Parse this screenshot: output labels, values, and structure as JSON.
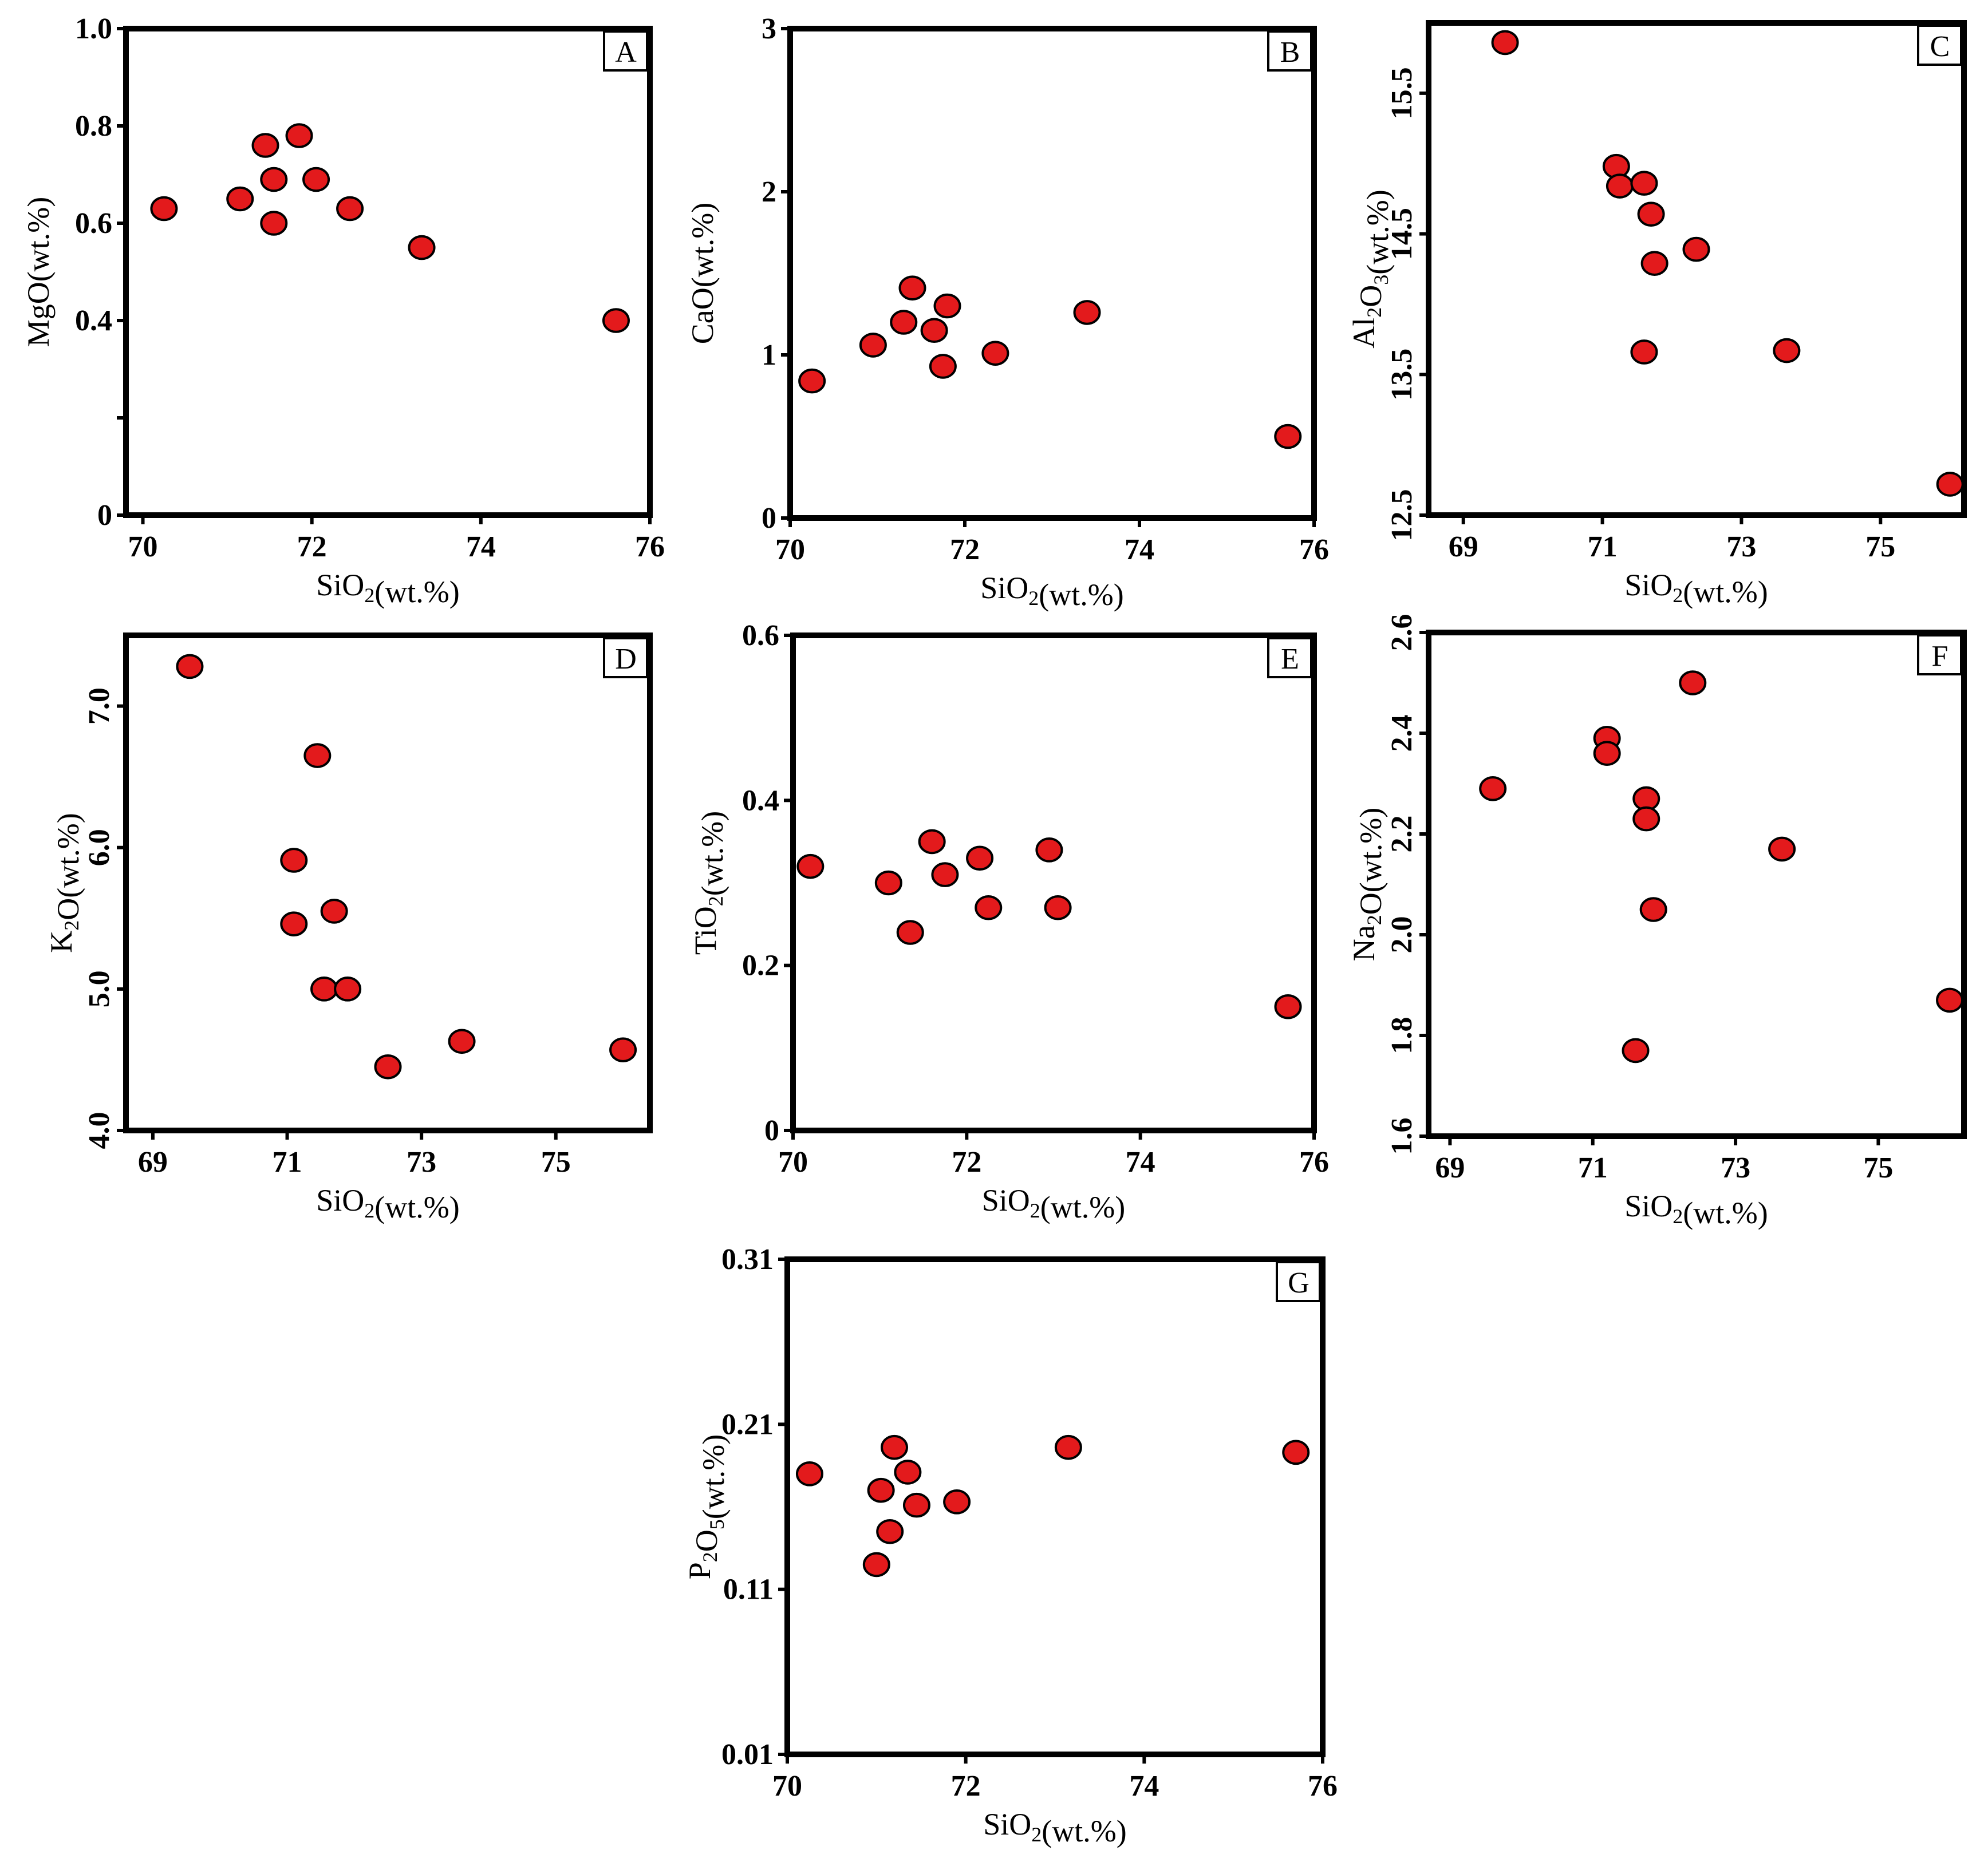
{
  "chart_data": [
    {
      "type": "scatter",
      "panel_label": "A",
      "xlabel": {
        "parts": [
          {
            "t": "SiO"
          },
          {
            "t": "2",
            "sub": true
          },
          {
            "t": "(wt.%)"
          }
        ]
      },
      "ylabel": {
        "parts": [
          {
            "t": "MgO(wt.%)"
          }
        ]
      },
      "xlim": [
        69.8,
        76
      ],
      "ylim": [
        0,
        1.0
      ],
      "xticks": [
        {
          "v": 70,
          "label": "70"
        },
        {
          "v": 72,
          "label": "72"
        },
        {
          "v": 74,
          "label": "74"
        },
        {
          "v": 76,
          "label": "76"
        }
      ],
      "yticks": [
        {
          "v": 0,
          "label": "0"
        },
        {
          "v": 0.2,
          "label": ""
        },
        {
          "v": 0.4,
          "label": "0.4"
        },
        {
          "v": 0.6,
          "label": "0.6"
        },
        {
          "v": 0.8,
          "label": "0.8"
        },
        {
          "v": 1.0,
          "label": "1.0"
        }
      ],
      "ylabel_rotate_ticks": false,
      "points": [
        [
          70.25,
          0.63
        ],
        [
          71.15,
          0.65
        ],
        [
          71.45,
          0.76
        ],
        [
          71.55,
          0.69
        ],
        [
          71.55,
          0.6
        ],
        [
          71.85,
          0.78
        ],
        [
          72.05,
          0.69
        ],
        [
          72.45,
          0.63
        ],
        [
          73.3,
          0.55
        ],
        [
          75.6,
          0.4
        ]
      ]
    },
    {
      "type": "scatter",
      "panel_label": "B",
      "xlabel": {
        "parts": [
          {
            "t": "SiO"
          },
          {
            "t": "2",
            "sub": true
          },
          {
            "t": "(wt.%)"
          }
        ]
      },
      "ylabel": {
        "parts": [
          {
            "t": "CaO(wt.%)"
          }
        ]
      },
      "xlim": [
        70,
        76
      ],
      "ylim": [
        0,
        3
      ],
      "xticks": [
        {
          "v": 70,
          "label": "70"
        },
        {
          "v": 72,
          "label": "72"
        },
        {
          "v": 74,
          "label": "74"
        },
        {
          "v": 76,
          "label": "76"
        }
      ],
      "yticks": [
        {
          "v": 0,
          "label": "0"
        },
        {
          "v": 1,
          "label": "1"
        },
        {
          "v": 2,
          "label": "2"
        },
        {
          "v": 3,
          "label": "3"
        }
      ],
      "ylabel_rotate_ticks": false,
      "points": [
        [
          70.25,
          0.84
        ],
        [
          70.95,
          1.06
        ],
        [
          71.3,
          1.2
        ],
        [
          71.4,
          1.41
        ],
        [
          71.65,
          1.15
        ],
        [
          71.75,
          0.93
        ],
        [
          71.8,
          1.3
        ],
        [
          72.35,
          1.01
        ],
        [
          73.4,
          1.26
        ],
        [
          75.7,
          0.5
        ]
      ]
    },
    {
      "type": "scatter",
      "panel_label": "C",
      "xlabel": {
        "parts": [
          {
            "t": "SiO"
          },
          {
            "t": "2",
            "sub": true
          },
          {
            "t": "(wt.%)"
          }
        ]
      },
      "ylabel": {
        "parts": [
          {
            "t": "Al"
          },
          {
            "t": "2",
            "sub": true
          },
          {
            "t": "O"
          },
          {
            "t": "3",
            "sub": true
          },
          {
            "t": "(wt.%)"
          }
        ]
      },
      "xlim": [
        68.5,
        76.2
      ],
      "ylim": [
        12.5,
        16.0
      ],
      "xticks": [
        {
          "v": 69,
          "label": "69"
        },
        {
          "v": 71,
          "label": "71"
        },
        {
          "v": 73,
          "label": "73"
        },
        {
          "v": 75,
          "label": "75"
        }
      ],
      "yticks": [
        {
          "v": 12.5,
          "label": "12.5"
        },
        {
          "v": 13.5,
          "label": "13.5"
        },
        {
          "v": 14.5,
          "label": "14.5"
        },
        {
          "v": 15.5,
          "label": "15.5"
        }
      ],
      "ylabel_rotate_ticks": true,
      "points": [
        [
          69.6,
          15.86
        ],
        [
          71.2,
          14.98
        ],
        [
          71.25,
          14.84
        ],
        [
          71.6,
          14.86
        ],
        [
          71.7,
          14.64
        ],
        [
          71.6,
          13.66
        ],
        [
          71.75,
          14.29
        ],
        [
          72.35,
          14.39
        ],
        [
          73.65,
          13.67
        ],
        [
          76.0,
          12.72
        ]
      ]
    },
    {
      "type": "scatter",
      "panel_label": "D",
      "xlabel": {
        "parts": [
          {
            "t": "SiO"
          },
          {
            "t": "2",
            "sub": true
          },
          {
            "t": "(wt.%)"
          }
        ]
      },
      "ylabel": {
        "parts": [
          {
            "t": "K"
          },
          {
            "t": "2",
            "sub": true
          },
          {
            "t": "O(wt.%)"
          }
        ]
      },
      "xlim": [
        68.6,
        76.4
      ],
      "ylim": [
        4.0,
        7.5
      ],
      "xticks": [
        {
          "v": 69,
          "label": "69"
        },
        {
          "v": 71,
          "label": "71"
        },
        {
          "v": 73,
          "label": "73"
        },
        {
          "v": 75,
          "label": "75"
        }
      ],
      "yticks": [
        {
          "v": 4.0,
          "label": "4.0"
        },
        {
          "v": 5.0,
          "label": "5.0"
        },
        {
          "v": 6.0,
          "label": "6.0"
        },
        {
          "v": 7.0,
          "label": "7.0"
        }
      ],
      "ylabel_rotate_ticks": true,
      "points": [
        [
          69.55,
          7.28
        ],
        [
          71.1,
          5.91
        ],
        [
          71.1,
          5.46
        ],
        [
          71.45,
          6.65
        ],
        [
          71.55,
          5.0
        ],
        [
          71.7,
          5.55
        ],
        [
          71.9,
          5.0
        ],
        [
          72.5,
          4.45
        ],
        [
          73.6,
          4.63
        ],
        [
          76.0,
          4.57
        ]
      ]
    },
    {
      "type": "scatter",
      "panel_label": "E",
      "xlabel": {
        "parts": [
          {
            "t": "SiO"
          },
          {
            "t": "2",
            "sub": true
          },
          {
            "t": "(wt.%)"
          }
        ]
      },
      "ylabel": {
        "parts": [
          {
            "t": "TiO"
          },
          {
            "t": "2",
            "sub": true
          },
          {
            "t": "(wt.%)"
          }
        ]
      },
      "xlim": [
        70,
        76
      ],
      "ylim": [
        0,
        0.6
      ],
      "xticks": [
        {
          "v": 70,
          "label": "70"
        },
        {
          "v": 72,
          "label": "72"
        },
        {
          "v": 74,
          "label": "74"
        },
        {
          "v": 76,
          "label": "76"
        }
      ],
      "yticks": [
        {
          "v": 0,
          "label": "0"
        },
        {
          "v": 0.2,
          "label": "0.2"
        },
        {
          "v": 0.4,
          "label": "0.4"
        },
        {
          "v": 0.6,
          "label": "0.6"
        }
      ],
      "ylabel_rotate_ticks": false,
      "points": [
        [
          70.2,
          0.32
        ],
        [
          71.1,
          0.3
        ],
        [
          71.35,
          0.24
        ],
        [
          71.6,
          0.35
        ],
        [
          71.75,
          0.31
        ],
        [
          72.15,
          0.33
        ],
        [
          72.25,
          0.27
        ],
        [
          72.95,
          0.34
        ],
        [
          73.05,
          0.27
        ],
        [
          75.7,
          0.15
        ]
      ]
    },
    {
      "type": "scatter",
      "panel_label": "F",
      "xlabel": {
        "parts": [
          {
            "t": "SiO"
          },
          {
            "t": "2",
            "sub": true
          },
          {
            "t": "(wt.%)"
          }
        ]
      },
      "ylabel": {
        "parts": [
          {
            "t": "Na"
          },
          {
            "t": "2",
            "sub": true
          },
          {
            "t": "O(wt.%)"
          }
        ]
      },
      "xlim": [
        68.7,
        76.2
      ],
      "ylim": [
        1.6,
        2.6
      ],
      "xticks": [
        {
          "v": 69,
          "label": "69"
        },
        {
          "v": 71,
          "label": "71"
        },
        {
          "v": 73,
          "label": "73"
        },
        {
          "v": 75,
          "label": "75"
        }
      ],
      "yticks": [
        {
          "v": 1.6,
          "label": "1.6"
        },
        {
          "v": 1.8,
          "label": "1.8"
        },
        {
          "v": 2.0,
          "label": "2.0"
        },
        {
          "v": 2.2,
          "label": "2.2"
        },
        {
          "v": 2.4,
          "label": "2.4"
        },
        {
          "v": 2.6,
          "label": "2.6"
        }
      ],
      "ylabel_rotate_ticks": true,
      "points": [
        [
          69.6,
          2.29
        ],
        [
          71.2,
          2.39
        ],
        [
          71.2,
          2.36
        ],
        [
          71.6,
          1.77
        ],
        [
          71.75,
          2.27
        ],
        [
          71.75,
          2.23
        ],
        [
          71.85,
          2.05
        ],
        [
          72.4,
          2.5
        ],
        [
          73.65,
          2.17
        ],
        [
          76.0,
          1.87
        ]
      ]
    },
    {
      "type": "scatter",
      "panel_label": "G",
      "xlabel": {
        "parts": [
          {
            "t": "SiO"
          },
          {
            "t": "2",
            "sub": true
          },
          {
            "t": "(wt.%)"
          }
        ]
      },
      "ylabel": {
        "parts": [
          {
            "t": "P"
          },
          {
            "t": "2",
            "sub": true
          },
          {
            "t": "O"
          },
          {
            "t": "5",
            "sub": true
          },
          {
            "t": "(wt.%)"
          }
        ]
      },
      "xlim": [
        70,
        76
      ],
      "ylim": [
        0.01,
        0.31
      ],
      "xticks": [
        {
          "v": 70,
          "label": "70"
        },
        {
          "v": 72,
          "label": "72"
        },
        {
          "v": 74,
          "label": "74"
        },
        {
          "v": 76,
          "label": "76"
        }
      ],
      "yticks": [
        {
          "v": 0.01,
          "label": "0.01"
        },
        {
          "v": 0.11,
          "label": "0.11"
        },
        {
          "v": 0.21,
          "label": "0.21"
        },
        {
          "v": 0.31,
          "label": "0.31"
        }
      ],
      "ylabel_rotate_ticks": false,
      "points": [
        [
          70.25,
          0.18
        ],
        [
          71.0,
          0.125
        ],
        [
          71.05,
          0.17
        ],
        [
          71.15,
          0.145
        ],
        [
          71.2,
          0.196
        ],
        [
          71.35,
          0.181
        ],
        [
          71.45,
          0.161
        ],
        [
          71.9,
          0.163
        ],
        [
          73.15,
          0.196
        ],
        [
          75.7,
          0.193
        ]
      ]
    }
  ]
}
